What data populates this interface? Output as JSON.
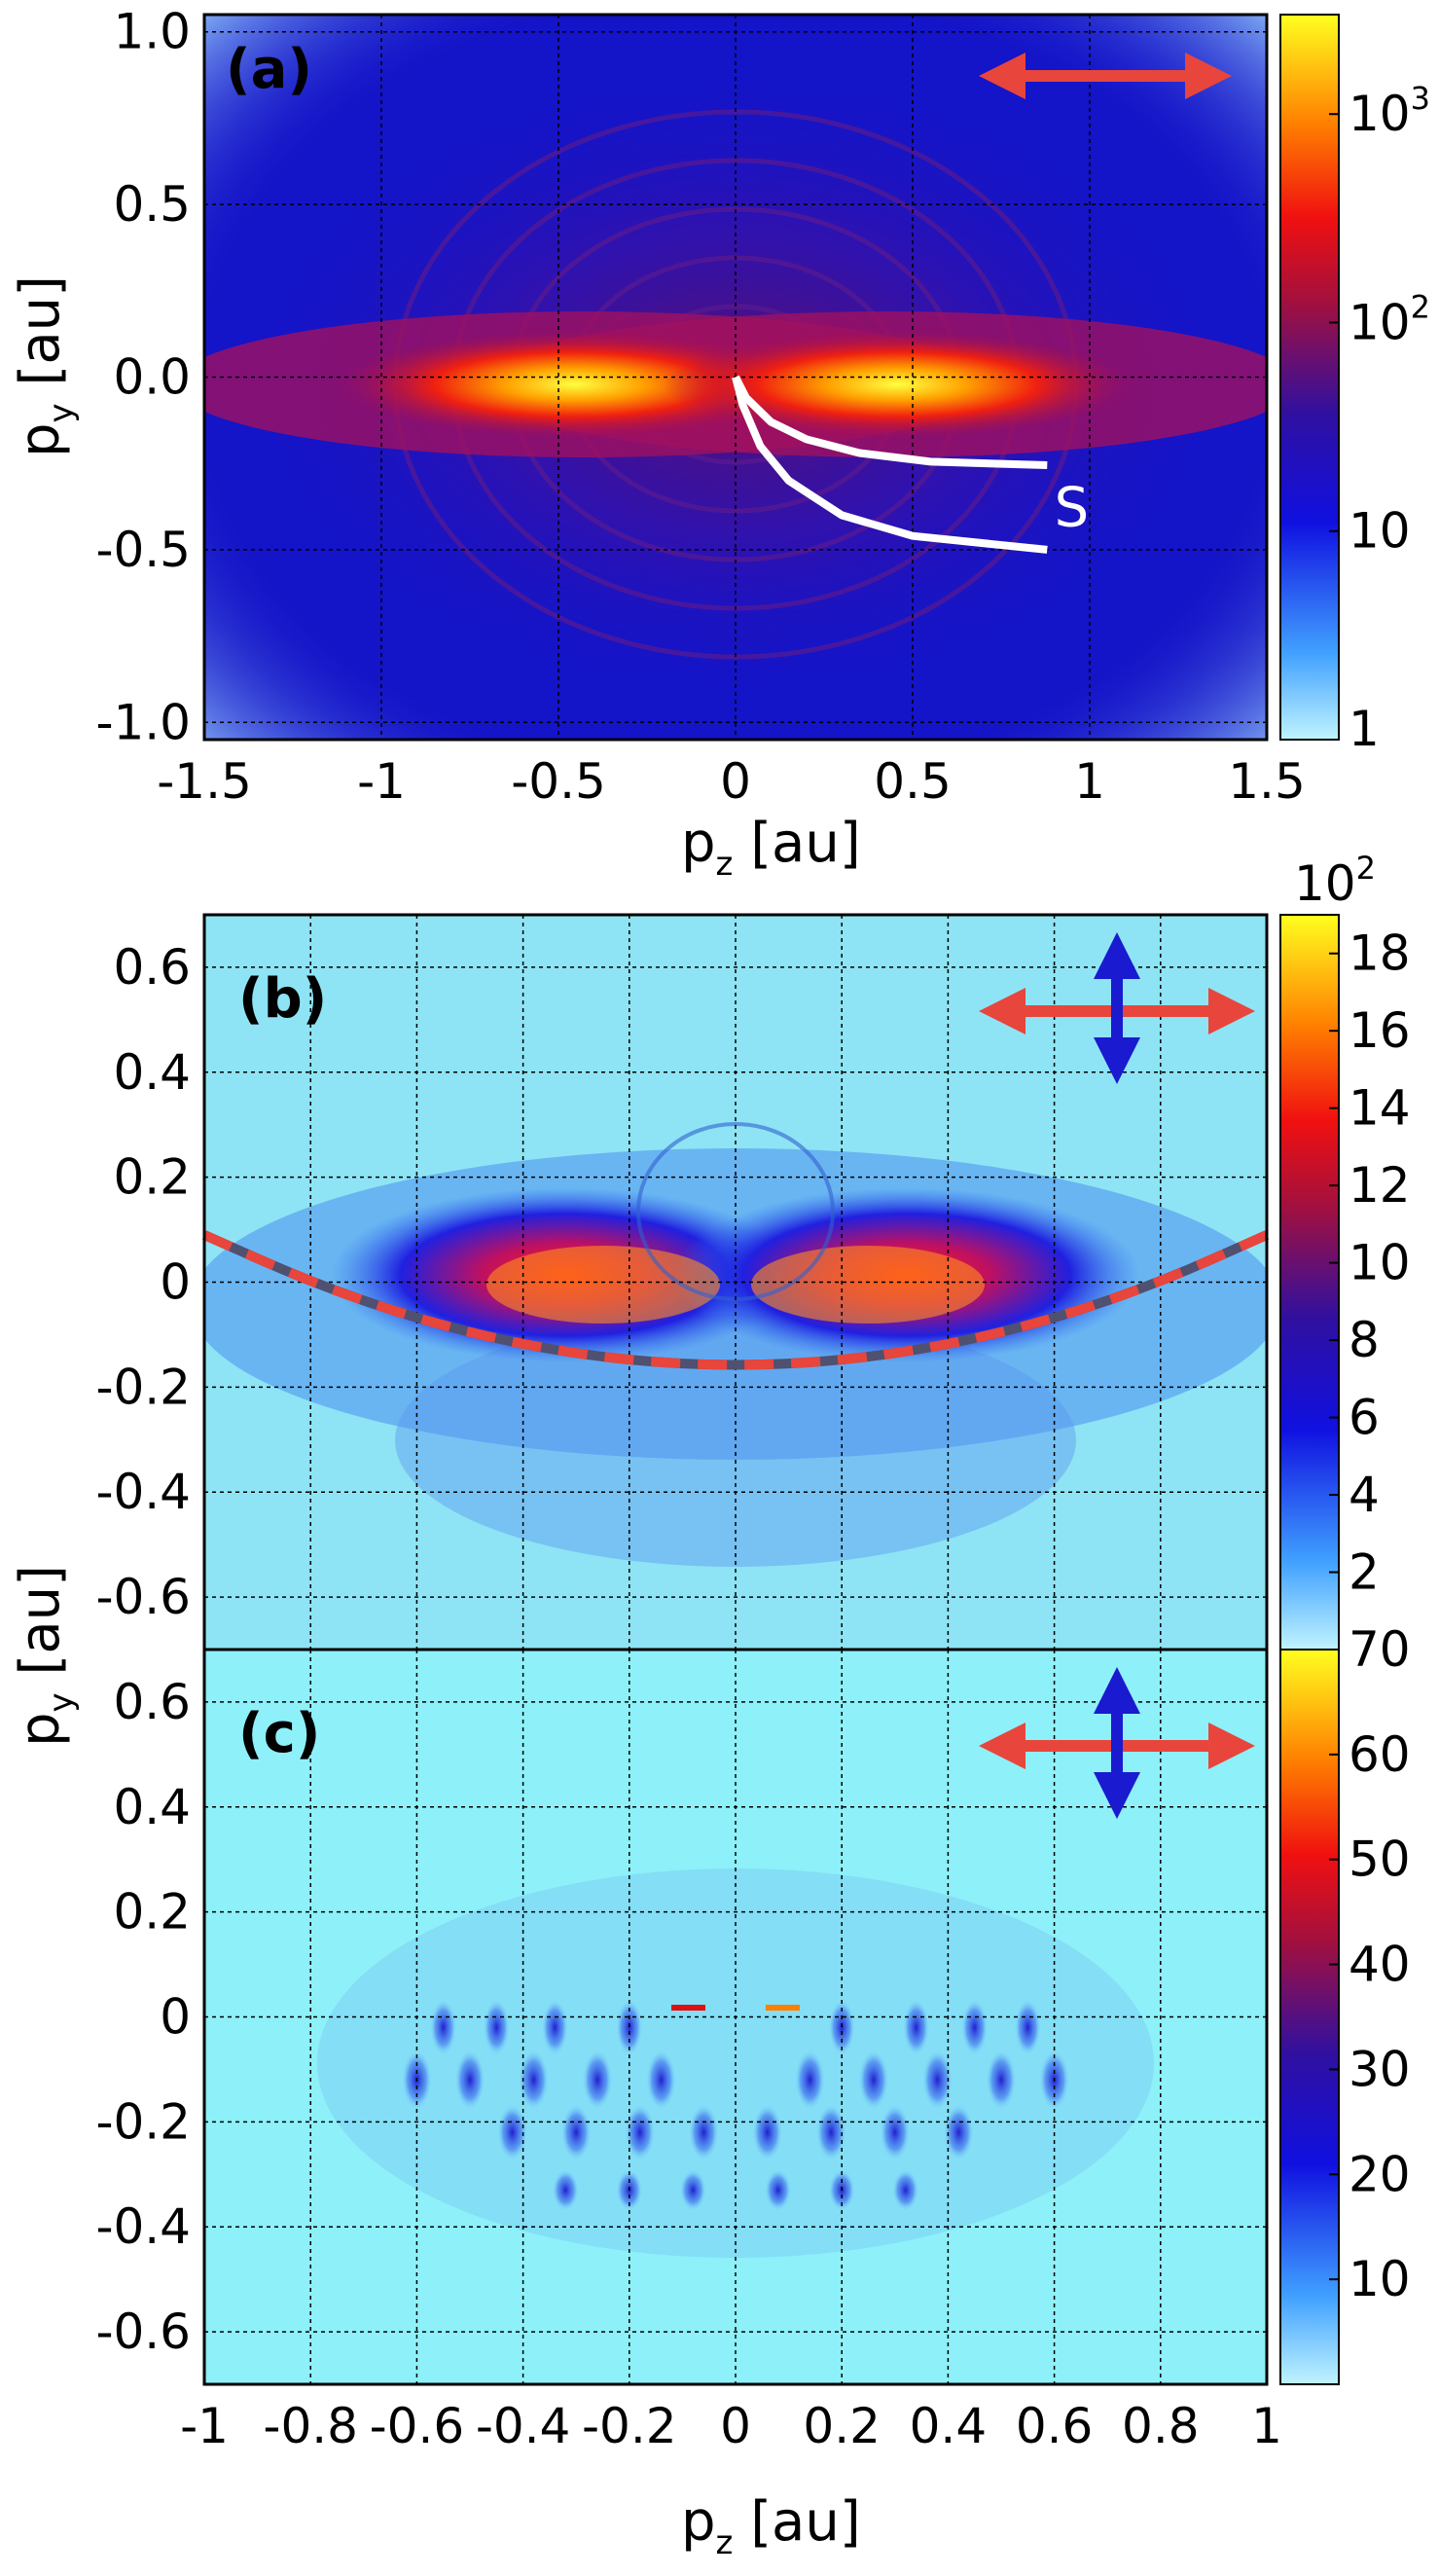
{
  "chart_data": [
    {
      "type": "heatmap",
      "panel_label": "(a)",
      "xlabel": {
        "main": "p",
        "sub": "z",
        "unit": "[au]"
      },
      "ylabel": {
        "main": "p",
        "sub": "y",
        "unit": "[au]"
      },
      "xlim": [
        -1.5,
        1.5
      ],
      "ylim": [
        -1.05,
        1.05
      ],
      "x_ticks": [
        {
          "value": -1.5,
          "label": "-1.5"
        },
        {
          "value": -1,
          "label": "-1"
        },
        {
          "value": -0.5,
          "label": "-0.5"
        },
        {
          "value": 0,
          "label": "0"
        },
        {
          "value": 0.5,
          "label": "0.5"
        },
        {
          "value": 1,
          "label": "1"
        },
        {
          "value": 1.5,
          "label": "1.5"
        }
      ],
      "y_ticks": [
        {
          "value": 1.0,
          "label": "1.0"
        },
        {
          "value": 0.5,
          "label": "0.5"
        },
        {
          "value": 0.0,
          "label": "0.0"
        },
        {
          "value": -0.5,
          "label": "-0.5"
        },
        {
          "value": -1.0,
          "label": "-1.0"
        }
      ],
      "grid": true,
      "colorbar": {
        "scale": "log",
        "range": [
          1,
          3000
        ],
        "ticks": [
          {
            "value": 1000,
            "base": "10",
            "exp": "3"
          },
          {
            "value": 100,
            "base": "10",
            "exp": "2"
          },
          {
            "value": 10,
            "base": "10",
            "exp": ""
          },
          {
            "value": 1,
            "base": "1",
            "exp": ""
          }
        ]
      },
      "polarization": "horizontal",
      "annotation": {
        "text": "S",
        "x": 0.9,
        "y": -0.38
      },
      "curves": [
        {
          "name": "upper",
          "points": [
            [
              0,
              0
            ],
            [
              0.03,
              -0.06
            ],
            [
              0.1,
              -0.13
            ],
            [
              0.2,
              -0.18
            ],
            [
              0.35,
              -0.22
            ],
            [
              0.55,
              -0.245
            ],
            [
              0.88,
              -0.255
            ]
          ]
        },
        {
          "name": "lower",
          "points": [
            [
              0,
              0
            ],
            [
              0.02,
              -0.08
            ],
            [
              0.07,
              -0.2
            ],
            [
              0.15,
              -0.3
            ],
            [
              0.3,
              -0.4
            ],
            [
              0.5,
              -0.46
            ],
            [
              0.88,
              -0.5
            ]
          ]
        }
      ]
    },
    {
      "type": "heatmap",
      "panel_label": "(b)",
      "xlim": [
        -1,
        1
      ],
      "ylim": [
        -0.7,
        0.7
      ],
      "x_ticks": [],
      "y_ticks": [
        {
          "value": 0.6,
          "label": "0.6"
        },
        {
          "value": 0.4,
          "label": "0.4"
        },
        {
          "value": 0.2,
          "label": "0.2"
        },
        {
          "value": 0,
          "label": "0"
        },
        {
          "value": -0.2,
          "label": "-0.2"
        },
        {
          "value": -0.4,
          "label": "-0.4"
        },
        {
          "value": -0.6,
          "label": "-0.6"
        }
      ],
      "grid": true,
      "colorbar": {
        "scale": "linear",
        "range": [
          0,
          19
        ],
        "multiplier": {
          "base": "10",
          "exp": "2"
        },
        "ticks": [
          {
            "value": 18,
            "label": "18"
          },
          {
            "value": 16,
            "label": "16"
          },
          {
            "value": 14,
            "label": "14"
          },
          {
            "value": 12,
            "label": "12"
          },
          {
            "value": 10,
            "label": "10"
          },
          {
            "value": 8,
            "label": "8"
          },
          {
            "value": 6,
            "label": "6"
          },
          {
            "value": 4,
            "label": "4"
          },
          {
            "value": 2,
            "label": "2"
          }
        ]
      },
      "polarization": "elliptical",
      "dashed_curve": {
        "x": [
          -1,
          -0.8,
          -0.6,
          -0.4,
          -0.2,
          0,
          0.2,
          0.4,
          0.6,
          0.8,
          1
        ],
        "y": [
          0.09,
          0.0,
          -0.07,
          -0.12,
          -0.15,
          -0.16,
          -0.15,
          -0.12,
          -0.07,
          0.0,
          0.09
        ]
      }
    },
    {
      "type": "heatmap",
      "panel_label": "(c)",
      "xlabel": {
        "main": "p",
        "sub": "z",
        "unit": "[au]"
      },
      "ylabel": {
        "main": "p",
        "sub": "y",
        "unit": "[au]"
      },
      "xlim": [
        -1,
        1
      ],
      "ylim": [
        -0.7,
        0.7
      ],
      "x_ticks": [
        {
          "value": -1,
          "label": "-1"
        },
        {
          "value": -0.8,
          "label": "-0.8"
        },
        {
          "value": -0.6,
          "label": "-0.6"
        },
        {
          "value": -0.4,
          "label": "-0.4"
        },
        {
          "value": -0.2,
          "label": "-0.2"
        },
        {
          "value": 0,
          "label": "0"
        },
        {
          "value": 0.2,
          "label": "0.2"
        },
        {
          "value": 0.4,
          "label": "0.4"
        },
        {
          "value": 0.6,
          "label": "0.6"
        },
        {
          "value": 0.8,
          "label": "0.8"
        },
        {
          "value": 1,
          "label": "1"
        }
      ],
      "y_ticks": [
        {
          "value": 0.6,
          "label": "0.6"
        },
        {
          "value": 0.4,
          "label": "0.4"
        },
        {
          "value": 0.2,
          "label": "0.2"
        },
        {
          "value": 0,
          "label": "0"
        },
        {
          "value": -0.2,
          "label": "-0.2"
        },
        {
          "value": -0.4,
          "label": "-0.4"
        },
        {
          "value": -0.6,
          "label": "-0.6"
        }
      ],
      "grid": true,
      "colorbar": {
        "scale": "linear",
        "range": [
          0,
          70
        ],
        "ticks": [
          {
            "value": 70,
            "label": "70"
          },
          {
            "value": 60,
            "label": "60"
          },
          {
            "value": 50,
            "label": "50"
          },
          {
            "value": 40,
            "label": "40"
          },
          {
            "value": 30,
            "label": "30"
          },
          {
            "value": 20,
            "label": "20"
          },
          {
            "value": 10,
            "label": "10"
          }
        ]
      },
      "polarization": "elliptical"
    }
  ],
  "colors": {
    "background_a": "#1414c8",
    "background_b": "#8ee4f4",
    "background_c": "#8ef0f8",
    "red_arrow": "#e8453c",
    "blue_arrow": "#1a1ad0",
    "dashed_red": "#e8453c",
    "dashed_gray": "#505070"
  }
}
